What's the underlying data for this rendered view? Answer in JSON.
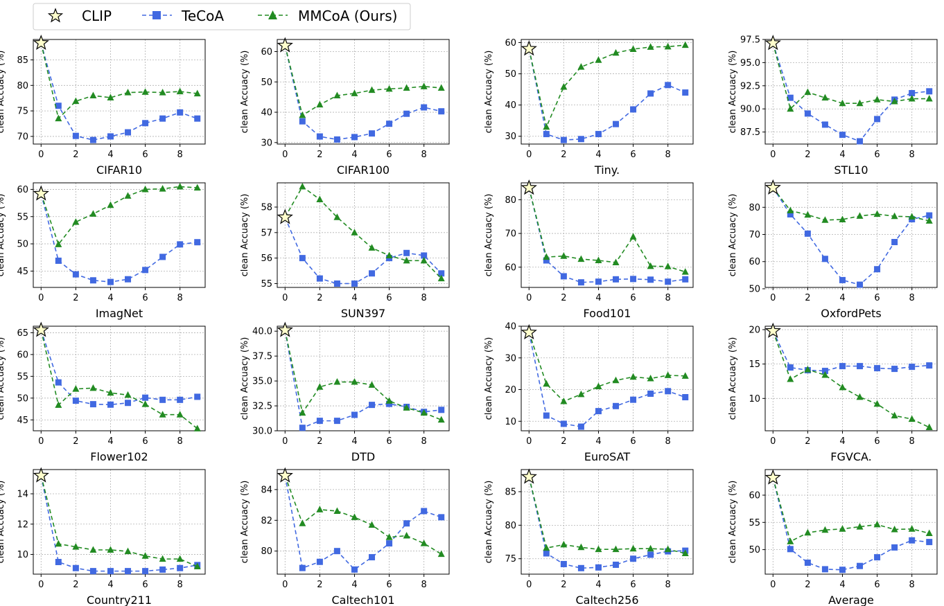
{
  "legend": {
    "items": [
      {
        "label": "CLIP",
        "marker": "star"
      },
      {
        "label": "TeCoA",
        "marker": "square"
      },
      {
        "label": "MMCoA (Ours)",
        "marker": "triangle"
      }
    ]
  },
  "colors": {
    "tecoa": "#4169e1",
    "mmcoa": "#228b22",
    "star_fill": "#ffffcc",
    "grid": "#b0b0b0"
  },
  "chart_data": [
    {
      "type": "line",
      "title": "",
      "xlabel": "CIFAR10",
      "ylabel": "clean Accuacy (%)",
      "x": [
        0,
        1,
        2,
        3,
        4,
        5,
        6,
        7,
        8,
        9
      ],
      "ylim": [
        68.5,
        89
      ],
      "yticks": [
        70,
        75,
        80,
        85
      ],
      "ytick_labels": [
        "70",
        "75",
        "80",
        "85"
      ],
      "xticks": [
        0,
        2,
        4,
        6,
        8
      ],
      "clip": 88.3,
      "series": [
        {
          "name": "TeCoA",
          "values": [
            88.3,
            76.0,
            70.1,
            69.3,
            70.0,
            70.8,
            72.6,
            73.5,
            74.7,
            73.5
          ]
        },
        {
          "name": "MMCoA (Ours)",
          "values": [
            88.3,
            73.5,
            76.9,
            78.0,
            77.6,
            78.6,
            78.7,
            78.6,
            78.8,
            78.4
          ]
        }
      ]
    },
    {
      "type": "line",
      "title": "",
      "xlabel": "CIFAR100",
      "ylabel": "clean Accuacy (%)",
      "x": [
        0,
        1,
        2,
        3,
        4,
        5,
        6,
        7,
        8,
        9
      ],
      "ylim": [
        29.5,
        64
      ],
      "yticks": [
        30,
        40,
        50,
        60
      ],
      "ytick_labels": [
        "30",
        "40",
        "50",
        "60"
      ],
      "xticks": [
        0,
        2,
        4,
        6,
        8
      ],
      "clip": 62.0,
      "series": [
        {
          "name": "TeCoA",
          "values": [
            62.0,
            37.0,
            32.0,
            31.0,
            31.8,
            33.0,
            36.2,
            39.5,
            41.6,
            40.3
          ]
        },
        {
          "name": "MMCoA (Ours)",
          "values": [
            62.0,
            39.0,
            42.5,
            45.5,
            46.2,
            47.3,
            47.7,
            48.0,
            48.5,
            48.0
          ]
        }
      ]
    },
    {
      "type": "line",
      "title": "",
      "xlabel": "Tiny.",
      "ylabel": "clean Accuacy (%)",
      "x": [
        0,
        1,
        2,
        3,
        4,
        5,
        6,
        7,
        8,
        9
      ],
      "ylim": [
        27.5,
        61
      ],
      "yticks": [
        30,
        40,
        50,
        60
      ],
      "ytick_labels": [
        "30",
        "40",
        "50",
        "60"
      ],
      "xticks": [
        0,
        2,
        4,
        6,
        8
      ],
      "clip": 58.0,
      "series": [
        {
          "name": "TeCoA",
          "values": [
            58.0,
            30.7,
            28.8,
            29.1,
            30.7,
            33.9,
            38.6,
            43.7,
            46.4,
            44.0
          ]
        },
        {
          "name": "MMCoA (Ours)",
          "values": [
            58.0,
            33.0,
            45.8,
            52.2,
            54.4,
            56.7,
            57.9,
            58.6,
            58.7,
            59.2
          ]
        }
      ]
    },
    {
      "type": "line",
      "title": "",
      "xlabel": "STL10",
      "ylabel": "clean Accuacy (%)",
      "x": [
        0,
        1,
        2,
        3,
        4,
        5,
        6,
        7,
        8,
        9
      ],
      "ylim": [
        86.2,
        97.5
      ],
      "yticks": [
        87.5,
        90.0,
        92.5,
        95.0,
        97.5
      ],
      "ytick_labels": [
        "87.5",
        "90.0",
        "92.5",
        "95.0",
        "97.5"
      ],
      "xticks": [
        0,
        2,
        4,
        6,
        8
      ],
      "clip": 97.1,
      "series": [
        {
          "name": "TeCoA",
          "values": [
            97.1,
            91.2,
            89.5,
            88.3,
            87.2,
            86.5,
            88.9,
            91.0,
            91.7,
            91.9
          ]
        },
        {
          "name": "MMCoA (Ours)",
          "values": [
            97.1,
            90.0,
            91.8,
            91.2,
            90.6,
            90.6,
            91.0,
            90.8,
            91.1,
            91.1
          ]
        }
      ]
    },
    {
      "type": "line",
      "title": "",
      "xlabel": "ImagNet",
      "ylabel": "clean Accuacy (%)",
      "x": [
        0,
        1,
        2,
        3,
        4,
        5,
        6,
        7,
        8,
        9
      ],
      "ylim": [
        42,
        61.2
      ],
      "yticks": [
        45,
        50,
        55,
        60
      ],
      "ytick_labels": [
        "45",
        "50",
        "55",
        "60"
      ],
      "xticks": [
        0,
        2,
        4,
        6,
        8
      ],
      "clip": 59.2,
      "series": [
        {
          "name": "TeCoA",
          "values": [
            59.2,
            46.9,
            44.4,
            43.3,
            43.0,
            43.5,
            45.2,
            47.6,
            49.9,
            50.3
          ]
        },
        {
          "name": "MMCoA (Ours)",
          "values": [
            59.2,
            49.9,
            54.0,
            55.5,
            57.1,
            58.8,
            60.0,
            60.1,
            60.5,
            60.3
          ]
        }
      ]
    },
    {
      "type": "line",
      "title": "",
      "xlabel": "SUN397",
      "ylabel": "clean Accuacy (%)",
      "x": [
        0,
        1,
        2,
        3,
        4,
        5,
        6,
        7,
        8,
        9
      ],
      "ylim": [
        54.85,
        58.95
      ],
      "yticks": [
        55,
        56,
        57,
        58
      ],
      "ytick_labels": [
        "55",
        "56",
        "57",
        "58"
      ],
      "xticks": [
        0,
        2,
        4,
        6,
        8
      ],
      "clip": 57.6,
      "series": [
        {
          "name": "TeCoA",
          "values": [
            57.6,
            56.0,
            55.2,
            55.0,
            55.0,
            55.4,
            56.0,
            56.2,
            56.1,
            55.4
          ]
        },
        {
          "name": "MMCoA (Ours)",
          "values": [
            57.6,
            58.8,
            58.3,
            57.6,
            57.0,
            56.4,
            56.1,
            55.9,
            55.9,
            55.2
          ]
        }
      ]
    },
    {
      "type": "line",
      "title": "",
      "xlabel": "Food101",
      "ylabel": "clean Accuacy (%)",
      "x": [
        0,
        1,
        2,
        3,
        4,
        5,
        6,
        7,
        8,
        9
      ],
      "ylim": [
        54,
        85
      ],
      "yticks": [
        60,
        70,
        80
      ],
      "ytick_labels": [
        "60",
        "70",
        "80"
      ],
      "xticks": [
        0,
        2,
        4,
        6,
        8
      ],
      "clip": 83.5,
      "series": [
        {
          "name": "TeCoA",
          "values": [
            83.5,
            62.0,
            57.3,
            55.5,
            55.7,
            56.4,
            56.5,
            56.3,
            55.7,
            56.4
          ]
        },
        {
          "name": "MMCoA (Ours)",
          "values": [
            83.5,
            63.0,
            63.3,
            62.4,
            62.0,
            61.4,
            69.0,
            60.3,
            60.2,
            58.6
          ]
        }
      ]
    },
    {
      "type": "line",
      "title": "",
      "xlabel": "OxfordPets",
      "ylabel": "clean Accuacy (%)",
      "x": [
        0,
        1,
        2,
        3,
        4,
        5,
        6,
        7,
        8,
        9
      ],
      "ylim": [
        50.5,
        89
      ],
      "yticks": [
        50,
        60,
        70,
        80
      ],
      "ytick_labels": [
        "50",
        "60",
        "70",
        "80"
      ],
      "xticks": [
        0,
        2,
        4,
        6,
        8
      ],
      "clip": 87.2,
      "series": [
        {
          "name": "TeCoA",
          "values": [
            87.2,
            77.4,
            70.3,
            61.0,
            53.2,
            51.5,
            57.2,
            67.2,
            75.6,
            77.0
          ]
        },
        {
          "name": "MMCoA (Ours)",
          "values": [
            87.2,
            78.8,
            77.2,
            75.3,
            75.5,
            76.8,
            77.5,
            76.7,
            76.5,
            75.0
          ]
        }
      ]
    },
    {
      "type": "line",
      "title": "",
      "xlabel": "Flower102",
      "ylabel": "clean Accuacy (%)",
      "x": [
        0,
        1,
        2,
        3,
        4,
        5,
        6,
        7,
        8,
        9
      ],
      "ylim": [
        42.5,
        66.5
      ],
      "yticks": [
        45,
        50,
        55,
        60,
        65
      ],
      "ytick_labels": [
        "45",
        "50",
        "55",
        "60",
        "65"
      ],
      "xticks": [
        0,
        2,
        4,
        6,
        8
      ],
      "clip": 65.6,
      "series": [
        {
          "name": "TeCoA",
          "values": [
            65.6,
            53.6,
            49.4,
            48.6,
            48.5,
            48.9,
            50.1,
            49.6,
            49.6,
            50.3
          ]
        },
        {
          "name": "MMCoA (Ours)",
          "values": [
            65.6,
            48.4,
            52.1,
            52.3,
            51.2,
            50.7,
            48.6,
            46.2,
            46.2,
            43.0
          ]
        }
      ]
    },
    {
      "type": "line",
      "title": "",
      "xlabel": "DTD",
      "ylabel": "clean Accuacy (%)",
      "x": [
        0,
        1,
        2,
        3,
        4,
        5,
        6,
        7,
        8,
        9
      ],
      "ylim": [
        30.0,
        40.5
      ],
      "yticks": [
        30.0,
        32.5,
        35.0,
        37.5,
        40.0
      ],
      "ytick_labels": [
        "30.0",
        "32.5",
        "35.0",
        "37.5",
        "40.0"
      ],
      "xticks": [
        0,
        2,
        4,
        6,
        8
      ],
      "clip": 40.1,
      "series": [
        {
          "name": "TeCoA",
          "values": [
            40.1,
            30.3,
            31.0,
            31.0,
            31.6,
            32.6,
            32.7,
            32.4,
            31.9,
            32.1
          ]
        },
        {
          "name": "MMCoA (Ours)",
          "values": [
            40.1,
            31.8,
            34.4,
            34.9,
            34.9,
            34.6,
            33.0,
            32.3,
            31.8,
            31.1
          ]
        }
      ]
    },
    {
      "type": "line",
      "title": "",
      "xlabel": "EuroSAT",
      "ylabel": "clean Accuacy (%)",
      "x": [
        0,
        1,
        2,
        3,
        4,
        5,
        6,
        7,
        8,
        9
      ],
      "ylim": [
        7,
        40
      ],
      "yticks": [
        10,
        20,
        30,
        40
      ],
      "ytick_labels": [
        "10",
        "20",
        "30",
        "40"
      ],
      "xticks": [
        0,
        2,
        4,
        6,
        8
      ],
      "clip": 38.0,
      "series": [
        {
          "name": "TeCoA",
          "values": [
            38.0,
            11.8,
            9.2,
            8.3,
            13.2,
            14.8,
            16.8,
            18.7,
            19.5,
            17.6
          ]
        },
        {
          "name": "MMCoA (Ours)",
          "values": [
            38.0,
            21.8,
            16.3,
            18.5,
            21.0,
            22.9,
            24.0,
            23.5,
            24.5,
            24.3
          ]
        }
      ]
    },
    {
      "type": "line",
      "title": "",
      "xlabel": "FGVCA.",
      "ylabel": "clean Accuacy (%)",
      "x": [
        0,
        1,
        2,
        3,
        4,
        5,
        6,
        7,
        8,
        9
      ],
      "ylim": [
        5.3,
        20.5
      ],
      "yticks": [
        10,
        15,
        20
      ],
      "ytick_labels": [
        "10",
        "15",
        "20"
      ],
      "xticks": [
        0,
        2,
        4,
        6,
        8
      ],
      "clip": 19.8,
      "series": [
        {
          "name": "TeCoA",
          "values": [
            19.8,
            14.5,
            14.1,
            14.0,
            14.7,
            14.7,
            14.4,
            14.3,
            14.6,
            14.8
          ]
        },
        {
          "name": "MMCoA (Ours)",
          "values": [
            19.8,
            12.8,
            14.2,
            13.4,
            11.6,
            10.2,
            9.2,
            7.5,
            7.0,
            5.8
          ]
        }
      ]
    },
    {
      "type": "line",
      "title": "",
      "xlabel": "Country211",
      "ylabel": "clean Accuacy (%)",
      "x": [
        0,
        1,
        2,
        3,
        4,
        5,
        6,
        7,
        8,
        9
      ],
      "ylim": [
        8.7,
        15.6
      ],
      "yticks": [
        10,
        12,
        14
      ],
      "ytick_labels": [
        "10",
        "12",
        "14"
      ],
      "xticks": [
        0,
        2,
        4,
        6,
        8
      ],
      "clip": 15.2,
      "series": [
        {
          "name": "TeCoA",
          "values": [
            15.2,
            9.5,
            9.1,
            8.9,
            8.9,
            8.9,
            8.9,
            9.0,
            9.1,
            9.3
          ]
        },
        {
          "name": "MMCoA (Ours)",
          "values": [
            15.2,
            10.7,
            10.5,
            10.3,
            10.3,
            10.2,
            9.9,
            9.7,
            9.7,
            9.2
          ]
        }
      ]
    },
    {
      "type": "line",
      "title": "",
      "xlabel": "Caltech101",
      "ylabel": "clean Accuacy (%)",
      "x": [
        0,
        1,
        2,
        3,
        4,
        5,
        6,
        7,
        8,
        9
      ],
      "ylim": [
        78.5,
        85.3
      ],
      "yticks": [
        80,
        82,
        84
      ],
      "ytick_labels": [
        "80",
        "82",
        "84"
      ],
      "xticks": [
        0,
        2,
        4,
        6,
        8
      ],
      "clip": 84.9,
      "series": [
        {
          "name": "TeCoA",
          "values": [
            84.9,
            78.9,
            79.3,
            80.0,
            78.8,
            79.6,
            80.5,
            81.8,
            82.6,
            82.2
          ]
        },
        {
          "name": "MMCoA (Ours)",
          "values": [
            84.9,
            81.8,
            82.7,
            82.6,
            82.2,
            81.7,
            80.9,
            81.0,
            80.5,
            79.8
          ]
        }
      ]
    },
    {
      "type": "line",
      "title": "",
      "xlabel": "Caltech256",
      "ylabel": "clean Accuacy (%)",
      "x": [
        0,
        1,
        2,
        3,
        4,
        5,
        6,
        7,
        8,
        9
      ],
      "ylim": [
        72.7,
        88.3
      ],
      "yticks": [
        75,
        80,
        85
      ],
      "ytick_labels": [
        "75",
        "80",
        "85"
      ],
      "xticks": [
        0,
        2,
        4,
        6,
        8
      ],
      "clip": 87.2,
      "series": [
        {
          "name": "TeCoA",
          "values": [
            87.2,
            75.8,
            74.2,
            73.6,
            73.7,
            74.1,
            75.0,
            75.6,
            76.1,
            76.2
          ]
        },
        {
          "name": "MMCoA (Ours)",
          "values": [
            87.2,
            76.6,
            77.1,
            76.7,
            76.4,
            76.4,
            76.5,
            76.5,
            76.4,
            75.8
          ]
        }
      ]
    },
    {
      "type": "line",
      "title": "",
      "xlabel": "Average",
      "ylabel": "clean Accuacy (%)",
      "x": [
        0,
        1,
        2,
        3,
        4,
        5,
        6,
        7,
        8,
        9
      ],
      "ylim": [
        45.5,
        64.7
      ],
      "yticks": [
        50,
        55,
        60
      ],
      "ytick_labels": [
        "50",
        "55",
        "60"
      ],
      "xticks": [
        0,
        2,
        4,
        6,
        8
      ],
      "clip": 63.2,
      "series": [
        {
          "name": "TeCoA",
          "values": [
            63.2,
            50.1,
            47.6,
            46.4,
            46.3,
            47.0,
            48.6,
            50.4,
            51.7,
            51.4
          ]
        },
        {
          "name": "MMCoA (Ours)",
          "values": [
            63.2,
            51.5,
            53.1,
            53.6,
            53.8,
            54.2,
            54.6,
            53.7,
            53.8,
            53.0
          ]
        }
      ]
    }
  ]
}
